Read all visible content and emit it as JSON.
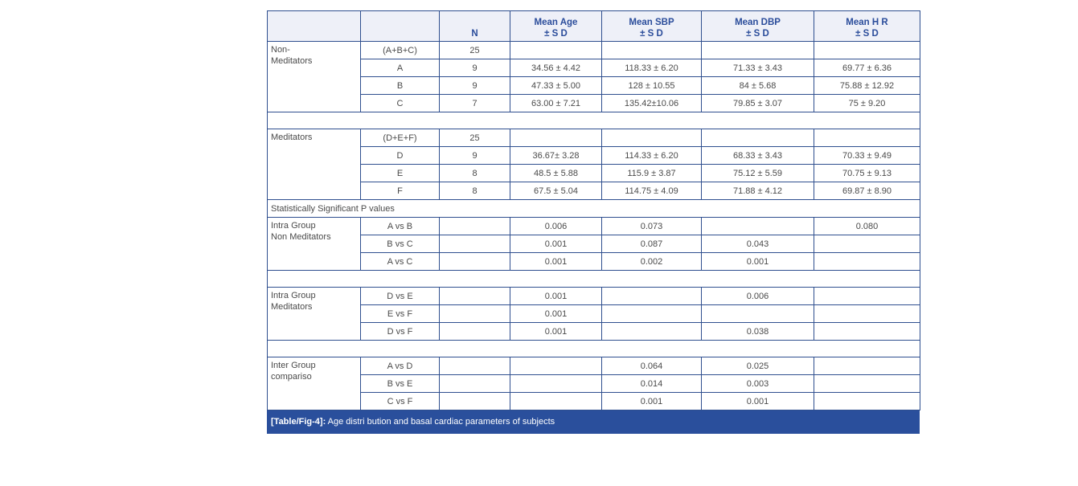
{
  "header": [
    {
      "l1": "",
      "l2": ""
    },
    {
      "l1": "",
      "l2": ""
    },
    {
      "l1": "",
      "l2": "N"
    },
    {
      "l1": "Mean Age",
      "l2": "± S D"
    },
    {
      "l1": "Mean SBP",
      "l2": "± S D"
    },
    {
      "l1": "Mean DBP",
      "l2": "± S D"
    },
    {
      "l1": "Mean H R",
      "l2": "± S D"
    }
  ],
  "sections": [
    {
      "type": "group",
      "label": "Non-\nMeditators",
      "rows": [
        [
          "(A+B+C)",
          "25",
          "",
          "",
          "",
          ""
        ],
        [
          "A",
          "9",
          "34.56 ± 4.42",
          "118.33 ± 6.20",
          "71.33 ± 3.43",
          "69.77 ± 6.36"
        ],
        [
          "B",
          "9",
          "47.33 ±  5.00",
          "128 ± 10.55",
          "84 ± 5.68",
          "75.88 ± 12.92"
        ],
        [
          "C",
          "7",
          "63.00 ± 7.21",
          "135.42±10.06",
          "79.85 ± 3.07",
          "75 ± 9.20"
        ]
      ]
    },
    {
      "type": "blank"
    },
    {
      "type": "group",
      "label": "Meditators",
      "rows": [
        [
          "(D+E+F)",
          "25",
          "",
          "",
          "",
          ""
        ],
        [
          "D",
          "9",
          "36.67± 3.28",
          "114.33 ± 6.20",
          "68.33 ± 3.43",
          "70.33 ± 9.49"
        ],
        [
          "E",
          "8",
          "48.5 ± 5.88",
          "115.9 ± 3.87",
          "75.12 ± 5.59",
          "70.75 ± 9.13"
        ],
        [
          "F",
          "8",
          "67.5 ± 5.04",
          "114.75 ± 4.09",
          "71.88 ± 4.12",
          "69.87 ± 8.90"
        ]
      ]
    },
    {
      "type": "note",
      "text": "Statistically Significant P values"
    },
    {
      "type": "group",
      "label": "Intra Group\nNon Meditators",
      "rows": [
        [
          "A vs B",
          "",
          "0.006",
          "0.073",
          "",
          "0.080"
        ],
        [
          "B vs C",
          "",
          "0.001",
          "0.087",
          "0.043",
          ""
        ],
        [
          "A vs C",
          "",
          "0.001",
          "0.002",
          "0.001",
          ""
        ]
      ]
    },
    {
      "type": "blank"
    },
    {
      "type": "group",
      "label": "Intra Group\nMeditators",
      "rows": [
        [
          "D vs E",
          "",
          "0.001",
          "",
          "0.006",
          ""
        ],
        [
          "E vs F",
          "",
          "0.001",
          "",
          "",
          ""
        ],
        [
          "D vs F",
          "",
          "0.001",
          "",
          "0.038",
          ""
        ]
      ]
    },
    {
      "type": "blank"
    },
    {
      "type": "group",
      "label": "Inter Group\ncompariso",
      "rows": [
        [
          "A vs D",
          "",
          "",
          "0.064",
          "0.025",
          ""
        ],
        [
          "B vs E",
          "",
          "",
          "0.014",
          "0.003",
          ""
        ],
        [
          "C vs F",
          "",
          "",
          "0.001",
          "0.001",
          ""
        ]
      ]
    }
  ],
  "caption": {
    "tag": "[Table/Fig-4]:",
    "text": " Age distri bution and basal cardiac parameters of subjects"
  }
}
